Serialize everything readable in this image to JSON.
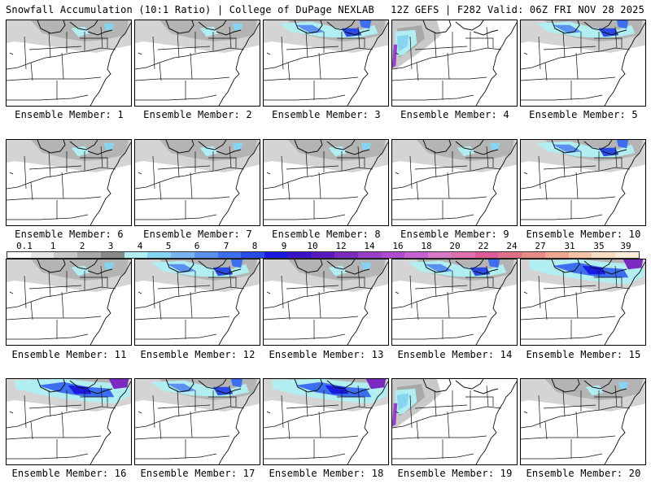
{
  "header": {
    "left_title": "Snowfall Accumulation (10:1 Ratio) | College of DuPage NEXLAB",
    "right_title": "12Z GEFS | F282 Valid: 06Z FRI NOV 28 2025"
  },
  "caption_prefix": "Ensemble Member:",
  "members": [
    {
      "label": "Ensemble Member: 1",
      "snow": "light"
    },
    {
      "label": "Ensemble Member: 2",
      "snow": "light"
    },
    {
      "label": "Ensemble Member: 3",
      "snow": "moderate"
    },
    {
      "label": "Ensemble Member: 4",
      "snow": "western"
    },
    {
      "label": "Ensemble Member: 5",
      "snow": "moderate"
    },
    {
      "label": "Ensemble Member: 6",
      "snow": "light"
    },
    {
      "label": "Ensemble Member: 7",
      "snow": "light"
    },
    {
      "label": "Ensemble Member: 8",
      "snow": "light"
    },
    {
      "label": "Ensemble Member: 9",
      "snow": "light"
    },
    {
      "label": "Ensemble Member: 10",
      "snow": "moderate"
    },
    {
      "label": "Ensemble Member: 11",
      "snow": "light"
    },
    {
      "label": "Ensemble Member: 12",
      "snow": "moderate"
    },
    {
      "label": "Ensemble Member: 13",
      "snow": "light"
    },
    {
      "label": "Ensemble Member: 14",
      "snow": "moderate"
    },
    {
      "label": "Ensemble Member: 15",
      "snow": "heavy"
    },
    {
      "label": "Ensemble Member: 16",
      "snow": "heavy"
    },
    {
      "label": "Ensemble Member: 17",
      "snow": "moderate"
    },
    {
      "label": "Ensemble Member: 18",
      "snow": "heavy"
    },
    {
      "label": "Ensemble Member: 19",
      "snow": "western"
    },
    {
      "label": "Ensemble Member: 20",
      "snow": "light"
    }
  ],
  "colorbar": {
    "ticks": [
      "0.1",
      "1",
      "2",
      "3",
      "4",
      "5",
      "6",
      "7",
      "8",
      "9",
      "10",
      "12",
      "14",
      "16",
      "18",
      "20",
      "22",
      "24",
      "27",
      "31",
      "35",
      "39"
    ],
    "colors": [
      "#ffffff",
      "#e6e6e6",
      "#c8c8c8",
      "#a8a8a8",
      "#8a8a8a",
      "#b0eef2",
      "#86d4f0",
      "#7ab3f0",
      "#5a90ee",
      "#3e6ef0",
      "#2a4ae8",
      "#1a1ae0",
      "#3a12c8",
      "#5a18c0",
      "#7a2abe",
      "#9a40c8",
      "#b04ad0",
      "#c860d0",
      "#d878c8",
      "#e070b0",
      "#e05a98",
      "#e07088",
      "#e88c88",
      "#f0a890",
      "#f4c4a8",
      "#f8dcc4",
      "#fcecdc"
    ]
  }
}
